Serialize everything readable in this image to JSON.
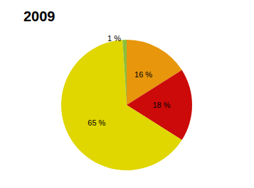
{
  "chart_data": {
    "type": "pie",
    "title": "2009",
    "categories": [
      null,
      null,
      null,
      null
    ],
    "values": [
      16,
      18,
      65,
      1
    ],
    "value_labels": [
      "16 %",
      "18 %",
      "65 %",
      "1 %"
    ],
    "colors": [
      "#e8960c",
      "#cc0a0a",
      "#e0d600",
      "#8cbf3a"
    ],
    "data_labels": true
  }
}
